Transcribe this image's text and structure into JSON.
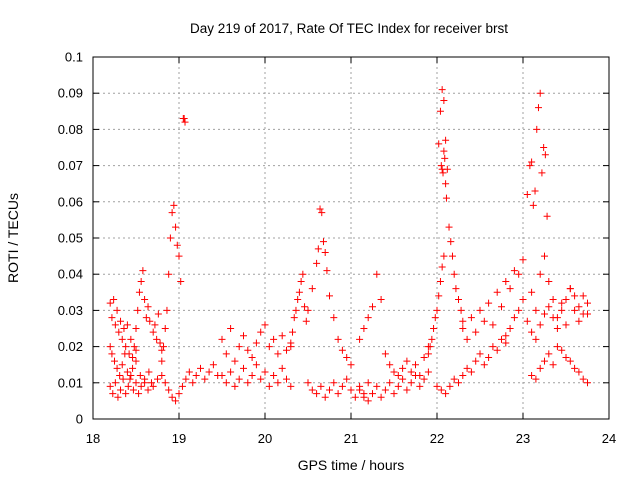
{
  "chart_data": {
    "type": "scatter",
    "title": "Day 219 of 2017, Rate Of TEC Index for receiver brst",
    "xlabel": "GPS time / hours",
    "ylabel": "ROTI / TECUs",
    "xlim": [
      18,
      24
    ],
    "ylim": [
      0,
      0.1
    ],
    "xticks": [
      "18",
      "19",
      "20",
      "21",
      "22",
      "23",
      "24"
    ],
    "yticks": [
      "0",
      "0.01",
      "0.02",
      "0.03",
      "0.04",
      "0.05",
      "0.06",
      "0.07",
      "0.08",
      "0.09",
      "0.1"
    ],
    "grid": true,
    "marker": "plus",
    "marker_color": "#ff0000",
    "series": [
      {
        "name": "",
        "x": [
          18.2,
          18.22,
          18.24,
          18.26,
          18.28,
          18.3,
          18.32,
          18.34,
          18.36,
          18.38,
          18.4,
          18.42,
          18.44,
          18.46,
          18.48,
          18.5,
          18.2,
          18.23,
          18.26,
          18.29,
          18.32,
          18.35,
          18.38,
          18.41,
          18.44,
          18.47,
          18.5,
          18.53,
          18.56,
          18.6,
          18.64,
          18.68,
          18.2,
          18.22,
          18.25,
          18.28,
          18.31,
          18.34,
          18.37,
          18.4,
          18.43,
          18.46,
          18.5,
          18.55,
          18.6,
          18.65,
          18.7,
          18.75,
          18.5,
          18.52,
          18.54,
          18.56,
          18.58,
          18.6,
          18.62,
          18.64,
          18.66,
          18.7,
          18.72,
          18.74,
          18.76,
          18.78,
          18.8,
          18.8,
          18.82,
          18.84,
          18.86,
          18.88,
          18.9,
          18.92,
          18.94,
          18.96,
          18.98,
          19.0,
          19.02,
          18.8,
          18.84,
          18.88,
          18.92,
          18.96,
          19.0,
          19.04,
          19.08,
          19.12,
          19.16,
          19.2,
          19.25,
          19.3,
          19.35,
          19.4,
          19.45,
          19.05,
          19.06,
          19.07,
          19.5,
          19.55,
          19.6,
          19.65,
          19.7,
          19.75,
          19.8,
          19.85,
          19.9,
          19.95,
          20.0,
          20.05,
          20.1,
          20.15,
          20.2,
          20.25,
          20.3,
          19.5,
          19.55,
          19.6,
          19.65,
          19.7,
          19.75,
          19.8,
          19.85,
          19.9,
          19.95,
          20.0,
          20.05,
          20.1,
          20.15,
          20.2,
          20.25,
          20.3,
          20.3,
          20.32,
          20.34,
          20.36,
          20.38,
          20.4,
          20.42,
          20.44,
          20.46,
          20.48,
          20.5,
          20.55,
          20.6,
          20.62,
          20.64,
          20.66,
          20.68,
          20.7,
          20.72,
          20.75,
          20.8,
          20.85,
          20.9,
          20.95,
          21.0,
          20.5,
          20.55,
          20.6,
          20.65,
          20.7,
          20.75,
          20.8,
          20.85,
          20.9,
          20.95,
          21.0,
          21.05,
          21.1,
          21.15,
          21.2,
          21.1,
          21.15,
          21.2,
          21.25,
          21.3,
          21.35,
          21.4,
          21.45,
          21.5,
          21.55,
          21.6,
          21.65,
          21.7,
          21.75,
          21.8,
          21.85,
          21.9,
          21.1,
          21.15,
          21.2,
          21.25,
          21.3,
          21.35,
          21.4,
          21.45,
          21.5,
          21.55,
          21.6,
          21.65,
          21.7,
          21.75,
          21.8,
          21.85,
          21.9,
          21.9,
          21.92,
          21.94,
          21.96,
          21.98,
          22.0,
          22.02,
          22.04,
          22.06,
          22.08,
          22.02,
          22.04,
          22.06,
          22.08,
          22.1,
          22.12,
          22.14,
          22.16,
          22.18,
          22.2,
          22.22,
          22.25,
          22.28,
          22.3,
          22.05,
          22.06,
          22.07,
          22.08,
          22.09,
          22.1,
          22.11,
          22.0,
          22.05,
          22.1,
          22.15,
          22.2,
          22.25,
          22.3,
          22.35,
          22.4,
          22.45,
          22.5,
          22.55,
          22.6,
          22.65,
          22.7,
          22.75,
          22.8,
          22.3,
          22.35,
          22.4,
          22.45,
          22.5,
          22.55,
          22.6,
          22.65,
          22.7,
          22.75,
          22.8,
          22.85,
          22.9,
          22.95,
          23.0,
          22.8,
          22.85,
          22.9,
          22.95,
          23.0,
          23.05,
          23.1,
          23.15,
          23.2,
          23.25,
          23.3,
          23.35,
          23.4,
          23.45,
          23.5,
          23.55,
          23.6,
          23.65,
          23.7,
          23.75,
          23.05,
          23.08,
          23.1,
          23.12,
          23.14,
          23.16,
          23.18,
          23.2,
          23.22,
          23.24,
          23.26,
          23.28,
          23.1,
          23.15,
          23.2,
          23.25,
          23.3,
          23.35,
          23.4,
          23.45,
          23.5,
          23.55,
          23.6,
          23.65,
          23.7,
          23.75,
          23.1,
          23.15,
          23.2,
          23.25,
          23.3,
          23.35,
          23.4,
          23.45,
          23.5,
          23.55,
          23.6,
          23.65,
          23.7,
          23.75
        ],
        "y": [
          0.032,
          0.028,
          0.033,
          0.026,
          0.03,
          0.024,
          0.027,
          0.022,
          0.025,
          0.02,
          0.026,
          0.018,
          0.022,
          0.017,
          0.02,
          0.019,
          0.009,
          0.007,
          0.01,
          0.006,
          0.008,
          0.011,
          0.007,
          0.009,
          0.012,
          0.008,
          0.01,
          0.007,
          0.009,
          0.011,
          0.008,
          0.01,
          0.02,
          0.018,
          0.016,
          0.014,
          0.012,
          0.015,
          0.018,
          0.013,
          0.011,
          0.014,
          0.016,
          0.012,
          0.01,
          0.013,
          0.009,
          0.011,
          0.025,
          0.03,
          0.035,
          0.038,
          0.041,
          0.033,
          0.028,
          0.031,
          0.027,
          0.024,
          0.026,
          0.022,
          0.029,
          0.021,
          0.019,
          0.016,
          0.02,
          0.025,
          0.03,
          0.04,
          0.05,
          0.057,
          0.059,
          0.053,
          0.048,
          0.045,
          0.038,
          0.012,
          0.01,
          0.008,
          0.006,
          0.005,
          0.007,
          0.009,
          0.011,
          0.013,
          0.01,
          0.012,
          0.014,
          0.011,
          0.013,
          0.015,
          0.012,
          0.083,
          0.083,
          0.082,
          0.022,
          0.018,
          0.025,
          0.016,
          0.02,
          0.023,
          0.019,
          0.017,
          0.021,
          0.024,
          0.026,
          0.02,
          0.022,
          0.018,
          0.023,
          0.019,
          0.021,
          0.012,
          0.01,
          0.013,
          0.009,
          0.011,
          0.014,
          0.01,
          0.012,
          0.015,
          0.011,
          0.013,
          0.009,
          0.012,
          0.01,
          0.014,
          0.011,
          0.009,
          0.02,
          0.024,
          0.028,
          0.03,
          0.033,
          0.035,
          0.038,
          0.04,
          0.031,
          0.027,
          0.03,
          0.036,
          0.043,
          0.047,
          0.058,
          0.057,
          0.049,
          0.046,
          0.041,
          0.034,
          0.028,
          0.022,
          0.019,
          0.017,
          0.015,
          0.01,
          0.008,
          0.007,
          0.009,
          0.006,
          0.008,
          0.01,
          0.007,
          0.009,
          0.011,
          0.008,
          0.006,
          0.009,
          0.007,
          0.01,
          0.022,
          0.025,
          0.028,
          0.031,
          0.04,
          0.033,
          0.018,
          0.015,
          0.013,
          0.012,
          0.014,
          0.016,
          0.013,
          0.015,
          0.012,
          0.017,
          0.02,
          0.008,
          0.006,
          0.005,
          0.007,
          0.009,
          0.006,
          0.008,
          0.01,
          0.007,
          0.009,
          0.011,
          0.008,
          0.01,
          0.012,
          0.009,
          0.011,
          0.013,
          0.018,
          0.02,
          0.022,
          0.025,
          0.028,
          0.03,
          0.034,
          0.038,
          0.042,
          0.045,
          0.076,
          0.085,
          0.091,
          0.088,
          0.077,
          0.069,
          0.053,
          0.049,
          0.045,
          0.04,
          0.036,
          0.033,
          0.03,
          0.027,
          0.07,
          0.069,
          0.068,
          0.074,
          0.072,
          0.065,
          0.061,
          0.009,
          0.008,
          0.007,
          0.009,
          0.011,
          0.01,
          0.012,
          0.014,
          0.013,
          0.016,
          0.018,
          0.015,
          0.017,
          0.02,
          0.019,
          0.022,
          0.021,
          0.025,
          0.022,
          0.028,
          0.024,
          0.03,
          0.027,
          0.032,
          0.026,
          0.035,
          0.031,
          0.038,
          0.036,
          0.041,
          0.04,
          0.044,
          0.023,
          0.025,
          0.028,
          0.03,
          0.033,
          0.027,
          0.024,
          0.022,
          0.026,
          0.029,
          0.031,
          0.028,
          0.025,
          0.03,
          0.033,
          0.036,
          0.034,
          0.031,
          0.029,
          0.032,
          0.062,
          0.07,
          0.071,
          0.059,
          0.063,
          0.08,
          0.086,
          0.09,
          0.068,
          0.075,
          0.073,
          0.056,
          0.012,
          0.011,
          0.014,
          0.016,
          0.018,
          0.015,
          0.02,
          0.019,
          0.017,
          0.016,
          0.014,
          0.013,
          0.011,
          0.01,
          0.035,
          0.03,
          0.04,
          0.045,
          0.038,
          0.033,
          0.028,
          0.032,
          0.026,
          0.036,
          0.03,
          0.027,
          0.034,
          0.029
        ]
      }
    ]
  }
}
